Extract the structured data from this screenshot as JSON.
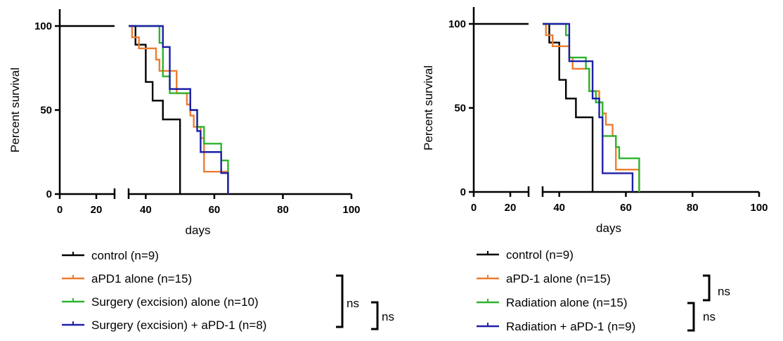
{
  "chart_data": [
    {
      "type": "line",
      "subtype": "kaplan-meier",
      "title": "",
      "xlabel": "days",
      "ylabel": "Percent survival",
      "xlim": [
        0,
        100
      ],
      "ylim": [
        0,
        100
      ],
      "x_axis_break": [
        30,
        35
      ],
      "x_ticks": [
        "0",
        "20",
        "40",
        "60",
        "80",
        "100"
      ],
      "y_ticks": [
        "0",
        "50",
        "100"
      ],
      "grid": false,
      "legend_position": "bottom",
      "series": [
        {
          "name": "control (n=9)",
          "color": "#000000",
          "points": [
            [
              0,
              100
            ],
            [
              37,
              100
            ],
            [
              37,
              88.9
            ],
            [
              40,
              88.9
            ],
            [
              40,
              66.7
            ],
            [
              42,
              66.7
            ],
            [
              42,
              55.6
            ],
            [
              45,
              55.6
            ],
            [
              45,
              44.4
            ],
            [
              50,
              44.4
            ],
            [
              50,
              0
            ]
          ]
        },
        {
          "name": "aPD1 alone (n=15)",
          "color": "#ED7D31",
          "points": [
            [
              35,
              100
            ],
            [
              36,
              100
            ],
            [
              36,
              93.3
            ],
            [
              38,
              93.3
            ],
            [
              38,
              86.7
            ],
            [
              43,
              86.7
            ],
            [
              43,
              80
            ],
            [
              44,
              80
            ],
            [
              44,
              73.3
            ],
            [
              49,
              73.3
            ],
            [
              49,
              60
            ],
            [
              52,
              60
            ],
            [
              52,
              53.3
            ],
            [
              53,
              53.3
            ],
            [
              53,
              46.7
            ],
            [
              54,
              46.7
            ],
            [
              54,
              40
            ],
            [
              56,
              40
            ],
            [
              56,
              33.3
            ],
            [
              57,
              33.3
            ],
            [
              57,
              13.3
            ],
            [
              64,
              13.3
            ],
            [
              64,
              0
            ]
          ]
        },
        {
          "name": "Surgery (excision) alone (n=10)",
          "color": "#2CB52C",
          "points": [
            [
              35,
              100
            ],
            [
              44,
              100
            ],
            [
              44,
              90
            ],
            [
              45,
              90
            ],
            [
              45,
              70
            ],
            [
              47,
              70
            ],
            [
              47,
              60
            ],
            [
              53,
              60
            ],
            [
              53,
              50
            ],
            [
              55,
              50
            ],
            [
              55,
              40
            ],
            [
              57,
              40
            ],
            [
              57,
              30
            ],
            [
              62,
              30
            ],
            [
              62,
              20
            ],
            [
              64,
              20
            ],
            [
              64,
              0
            ]
          ]
        },
        {
          "name": "Surgery (excision) + aPD-1 (n=8)",
          "color": "#1F1FA8",
          "points": [
            [
              35,
              100
            ],
            [
              45,
              100
            ],
            [
              45,
              87.5
            ],
            [
              47,
              87.5
            ],
            [
              47,
              62.5
            ],
            [
              53,
              62.5
            ],
            [
              53,
              50
            ],
            [
              55,
              50
            ],
            [
              55,
              37.5
            ],
            [
              56,
              37.5
            ],
            [
              56,
              25
            ],
            [
              62,
              25
            ],
            [
              62,
              12.5
            ],
            [
              64,
              12.5
            ],
            [
              64,
              0
            ]
          ]
        }
      ],
      "comparisons": [
        {
          "label": "ns",
          "groups": [
            "aPD1 alone (n=15)",
            "Surgery (excision) + aPD-1 (n=8)"
          ]
        },
        {
          "label": "ns",
          "groups": [
            "Surgery (excision) alone (n=10)",
            "Surgery (excision) + aPD-1 (n=8)"
          ]
        }
      ]
    },
    {
      "type": "line",
      "subtype": "kaplan-meier",
      "title": "",
      "xlabel": "days",
      "ylabel": "Percent survival",
      "xlim": [
        0,
        100
      ],
      "ylim": [
        0,
        100
      ],
      "x_axis_break": [
        30,
        35
      ],
      "x_ticks": [
        "0",
        "20",
        "40",
        "60",
        "80",
        "100"
      ],
      "y_ticks": [
        "0",
        "50",
        "100"
      ],
      "grid": false,
      "legend_position": "bottom",
      "series": [
        {
          "name": "control (n=9)",
          "color": "#000000",
          "points": [
            [
              0,
              100
            ],
            [
              37,
              100
            ],
            [
              37,
              88.9
            ],
            [
              40,
              88.9
            ],
            [
              40,
              66.7
            ],
            [
              42,
              66.7
            ],
            [
              42,
              55.6
            ],
            [
              45,
              55.6
            ],
            [
              45,
              44.4
            ],
            [
              50,
              44.4
            ],
            [
              50,
              0
            ]
          ]
        },
        {
          "name": "aPD-1 alone (n=15)",
          "color": "#ED7D31",
          "points": [
            [
              35,
              100
            ],
            [
              36,
              100
            ],
            [
              36,
              93.3
            ],
            [
              38,
              93.3
            ],
            [
              38,
              86.7
            ],
            [
              43,
              86.7
            ],
            [
              43,
              80
            ],
            [
              44,
              80
            ],
            [
              44,
              73.3
            ],
            [
              49,
              73.3
            ],
            [
              49,
              60
            ],
            [
              52,
              60
            ],
            [
              52,
              53.3
            ],
            [
              53,
              53.3
            ],
            [
              53,
              46.7
            ],
            [
              54,
              46.7
            ],
            [
              54,
              40
            ],
            [
              56,
              40
            ],
            [
              56,
              33.3
            ],
            [
              57,
              33.3
            ],
            [
              57,
              13.3
            ],
            [
              64,
              13.3
            ],
            [
              64,
              0
            ]
          ]
        },
        {
          "name": "Radiation alone (n=15)",
          "color": "#2CB52C",
          "points": [
            [
              35,
              100
            ],
            [
              42,
              100
            ],
            [
              42,
              93.3
            ],
            [
              43,
              93.3
            ],
            [
              43,
              80
            ],
            [
              48,
              80
            ],
            [
              48,
              73.3
            ],
            [
              49,
              73.3
            ],
            [
              49,
              60
            ],
            [
              51,
              60
            ],
            [
              51,
              53.3
            ],
            [
              53,
              53.3
            ],
            [
              53,
              33.3
            ],
            [
              57,
              33.3
            ],
            [
              57,
              26.7
            ],
            [
              58,
              26.7
            ],
            [
              58,
              20
            ],
            [
              64,
              20
            ],
            [
              64,
              0
            ]
          ]
        },
        {
          "name": "Radiation + aPD-1 (n=9)",
          "color": "#1F1FA8",
          "points": [
            [
              35,
              100
            ],
            [
              43,
              100
            ],
            [
              43,
              77.8
            ],
            [
              50,
              77.8
            ],
            [
              50,
              55.6
            ],
            [
              52,
              55.6
            ],
            [
              52,
              44.4
            ],
            [
              53,
              44.4
            ],
            [
              53,
              11.1
            ],
            [
              62,
              11.1
            ],
            [
              62,
              0
            ]
          ]
        }
      ],
      "comparisons": [
        {
          "label": "ns",
          "groups": [
            "aPD-1 alone (n=15)",
            "Radiation alone (n=15)"
          ]
        },
        {
          "label": "ns",
          "groups": [
            "Radiation alone (n=15)",
            "Radiation + aPD-1 (n=9)"
          ]
        }
      ]
    }
  ]
}
